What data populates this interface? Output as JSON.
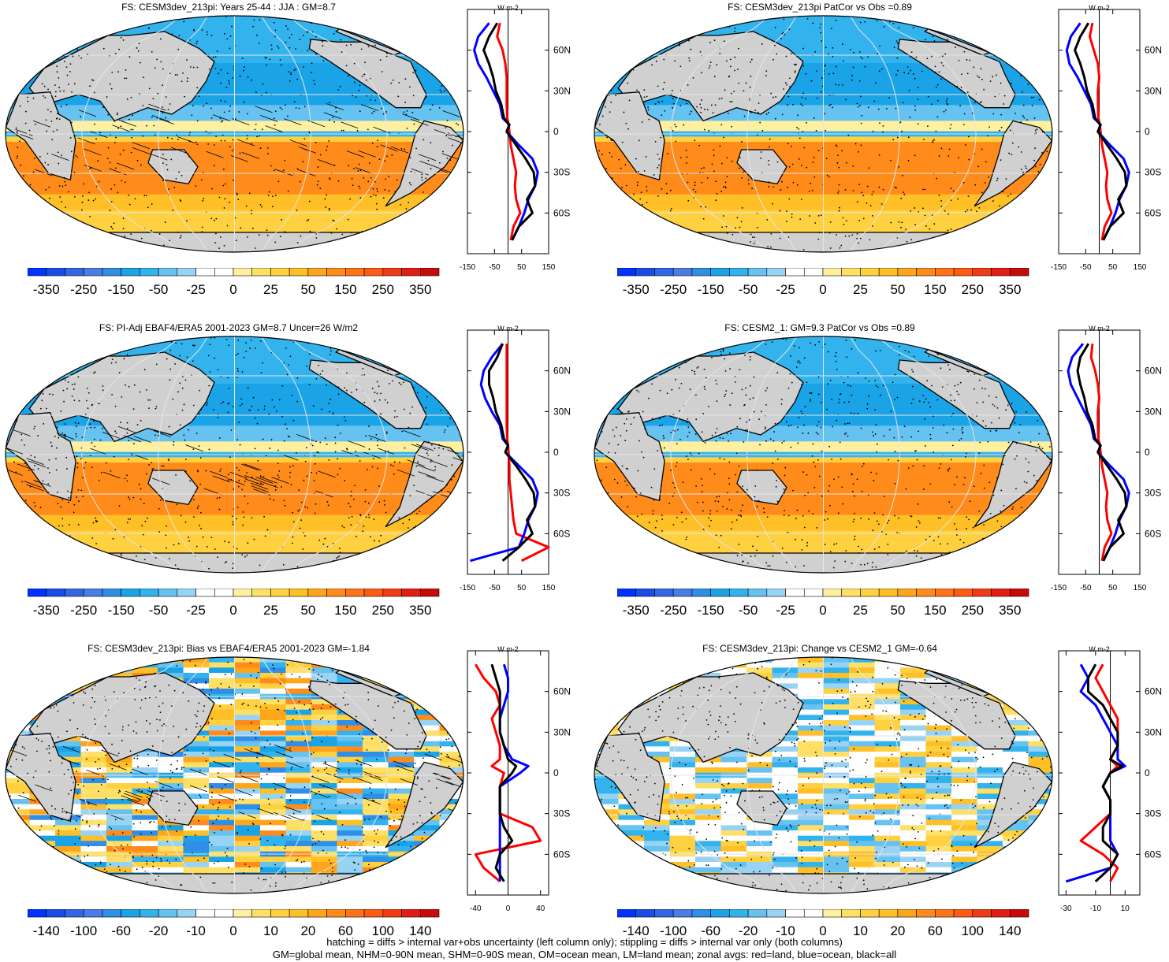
{
  "footer": {
    "line1": "hatching = diffs > internal var+obs uncertainty (left column only); stippling = diffs > internal var only (both columns)",
    "line2": "GM=global mean, NHM=0-90N mean, SHM=0-90S mean, OM=ocean mean, LM=land mean; zonal avgs: red=land, blue=ocean, black=all"
  },
  "colors": {
    "land": "#d0d0d0",
    "zonal_land": "#ff0000",
    "zonal_ocean": "#0000ff",
    "zonal_all": "#000000",
    "scale": [
      "#0033ff",
      "#1a4de6",
      "#3366e6",
      "#4a7de6",
      "#2f8fe6",
      "#1aa3e6",
      "#33b3ee",
      "#66c2f0",
      "#99d3f4",
      "#ffffff",
      "#ffffff",
      "#fff0a0",
      "#ffe066",
      "#ffd040",
      "#ffbf26",
      "#ffa51a",
      "#ff8c1a",
      "#ff7319",
      "#ff5a14",
      "#f03c14",
      "#e01e14",
      "#c80a0a"
    ]
  },
  "chart_data": [
    {
      "type": "heatmap",
      "title": "FS: CESM3dev_213pi: Years 25-44 : JJA : GM=8.7",
      "pattern": "mean",
      "hatched": true,
      "colorbar_labels": [
        "-350",
        "-250",
        "-150",
        "-50",
        "-25",
        "0",
        "25",
        "50",
        "150",
        "250",
        "350"
      ],
      "zonal": {
        "unit": "W m-2",
        "xlim": [
          -150,
          150
        ],
        "xticks": [
          "-150",
          "-50",
          "50",
          "150"
        ],
        "ylim": [
          -90,
          90
        ],
        "yticks": [
          "60N",
          "30N",
          "0",
          "30S",
          "60S"
        ],
        "ytick_values": [
          60,
          30,
          0,
          -30,
          -60
        ],
        "lat": [
          80,
          70,
          60,
          50,
          40,
          30,
          20,
          10,
          5,
          0,
          -10,
          -20,
          -30,
          -40,
          -50,
          -60,
          -70,
          -80
        ],
        "land": [
          -30,
          -40,
          -20,
          -10,
          -5,
          -5,
          -5,
          -3,
          2,
          5,
          10,
          20,
          30,
          25,
          30,
          45,
          20,
          10
        ],
        "ocean": [
          -70,
          -110,
          -125,
          -110,
          -80,
          -55,
          -30,
          -20,
          5,
          -5,
          40,
          90,
          110,
          100,
          75,
          60,
          40,
          15
        ],
        "all": [
          -40,
          -70,
          -90,
          -70,
          -55,
          -45,
          -25,
          -15,
          5,
          -5,
          30,
          65,
          95,
          100,
          70,
          90,
          40,
          15
        ]
      }
    },
    {
      "type": "heatmap",
      "title": "FS: CESM3dev_213pi PatCor vs Obs =0.89",
      "pattern": "mean",
      "hatched": false,
      "colorbar_labels": [
        "-350",
        "-250",
        "-150",
        "-50",
        "-25",
        "0",
        "25",
        "50",
        "150",
        "250",
        "350"
      ],
      "zonal": {
        "unit": "W m-2",
        "xlim": [
          -150,
          150
        ],
        "xticks": [
          "-150",
          "-50",
          "50",
          "150"
        ],
        "ylim": [
          -90,
          90
        ],
        "yticks": [
          "60N",
          "30N",
          "0",
          "30S",
          "60S"
        ],
        "ytick_values": [
          60,
          30,
          0,
          -30,
          -60
        ],
        "lat": [
          80,
          70,
          60,
          50,
          40,
          30,
          20,
          10,
          5,
          0,
          -10,
          -20,
          -30,
          -40,
          -50,
          -60,
          -70,
          -80
        ],
        "land": [
          -25,
          -35,
          -20,
          -5,
          0,
          -5,
          -5,
          -3,
          2,
          5,
          10,
          20,
          30,
          25,
          30,
          45,
          20,
          10
        ],
        "ocean": [
          -70,
          -105,
          -120,
          -110,
          -80,
          -55,
          -30,
          -20,
          5,
          -5,
          40,
          90,
          110,
          100,
          75,
          60,
          40,
          15
        ],
        "all": [
          -40,
          -70,
          -90,
          -70,
          -55,
          -45,
          -25,
          -15,
          5,
          -5,
          30,
          65,
          95,
          100,
          70,
          90,
          40,
          15
        ]
      }
    },
    {
      "type": "heatmap",
      "title": "FS: PI-Adj EBAF4/ERA5 2001-2023 GM=8.7 Uncer=26 W/m2",
      "pattern": "mean",
      "hatched": true,
      "colorbar_labels": [
        "-350",
        "-250",
        "-150",
        "-50",
        "-25",
        "0",
        "25",
        "50",
        "150",
        "250",
        "350"
      ],
      "zonal": {
        "unit": "W m-2",
        "xlim": [
          -150,
          150
        ],
        "xticks": [
          "-150",
          "-50",
          "50",
          "150"
        ],
        "ylim": [
          -90,
          90
        ],
        "yticks": [
          "60N",
          "30N",
          "0",
          "30S",
          "60S"
        ],
        "ytick_values": [
          60,
          30,
          0,
          -30,
          -60
        ],
        "lat": [
          80,
          70,
          60,
          50,
          40,
          30,
          20,
          10,
          5,
          0,
          -10,
          -20,
          -30,
          -40,
          -50,
          -60,
          -70,
          -80
        ],
        "land": [
          -5,
          -5,
          -5,
          -5,
          -5,
          -5,
          -5,
          -3,
          0,
          2,
          5,
          5,
          10,
          15,
          20,
          30,
          150,
          50
        ],
        "ocean": [
          -20,
          -60,
          -90,
          -100,
          -85,
          -60,
          -30,
          -20,
          0,
          -10,
          40,
          90,
          110,
          100,
          75,
          60,
          40,
          -140
        ],
        "all": [
          -20,
          -40,
          -70,
          -70,
          -55,
          -45,
          -25,
          -15,
          0,
          -10,
          30,
          65,
          95,
          100,
          70,
          90,
          40,
          -20
        ]
      }
    },
    {
      "type": "heatmap",
      "title": "FS: CESM2_1: GM=9.3 PatCor vs Obs =0.89",
      "pattern": "mean",
      "hatched": false,
      "colorbar_labels": [
        "-350",
        "-250",
        "-150",
        "-50",
        "-25",
        "0",
        "25",
        "50",
        "150",
        "250",
        "350"
      ],
      "zonal": {
        "unit": "W m-2",
        "xlim": [
          -150,
          150
        ],
        "xticks": [
          "-150",
          "-50",
          "50",
          "150"
        ],
        "ylim": [
          -90,
          90
        ],
        "yticks": [
          "60N",
          "30N",
          "0",
          "30S",
          "60S"
        ],
        "ytick_values": [
          60,
          30,
          0,
          -30,
          -60
        ],
        "lat": [
          80,
          70,
          60,
          50,
          40,
          30,
          20,
          10,
          5,
          0,
          -10,
          -20,
          -30,
          -40,
          -50,
          -60,
          -70,
          -80
        ],
        "land": [
          -25,
          -30,
          -15,
          -5,
          0,
          -5,
          -5,
          -3,
          2,
          5,
          10,
          20,
          30,
          25,
          30,
          45,
          20,
          10
        ],
        "ocean": [
          -60,
          -100,
          -115,
          -105,
          -80,
          -55,
          -30,
          -20,
          5,
          -5,
          40,
          90,
          110,
          100,
          75,
          60,
          40,
          15
        ],
        "all": [
          -40,
          -70,
          -80,
          -70,
          -55,
          -45,
          -25,
          -15,
          5,
          -5,
          30,
          65,
          95,
          100,
          70,
          90,
          40,
          15
        ]
      }
    },
    {
      "type": "heatmap",
      "title": "FS: CESM3dev_213pi: Bias vs EBAF4/ERA5 2001-2023 GM=-1.84",
      "pattern": "bias",
      "hatched": true,
      "colorbar_labels": [
        "-140",
        "-100",
        "-60",
        "-20",
        "-10",
        "0",
        "10",
        "20",
        "60",
        "100",
        "140"
      ],
      "zonal": {
        "unit": "W m-2",
        "xlim": [
          -50,
          50
        ],
        "xticks": [
          "-40",
          "0",
          "40"
        ],
        "ylim": [
          -90,
          90
        ],
        "yticks": [
          "60N",
          "30N",
          "0",
          "30S",
          "60S"
        ],
        "ytick_values": [
          60,
          30,
          0,
          -30,
          -60
        ],
        "lat": [
          80,
          70,
          60,
          50,
          40,
          30,
          20,
          10,
          5,
          0,
          -10,
          -20,
          -30,
          -40,
          -50,
          -60,
          -70,
          -80
        ],
        "land": [
          -40,
          -30,
          -15,
          -10,
          -20,
          -15,
          -10,
          -10,
          -20,
          -5,
          -10,
          -10,
          -10,
          30,
          40,
          -40,
          -30,
          -10
        ],
        "ocean": [
          -5,
          0,
          0,
          -5,
          -10,
          -10,
          -5,
          5,
          25,
          15,
          -10,
          -10,
          -10,
          -10,
          -10,
          -10,
          -10,
          -10
        ],
        "all": [
          -20,
          -15,
          -10,
          -10,
          -10,
          -10,
          -5,
          0,
          10,
          5,
          -10,
          -10,
          -10,
          -5,
          5,
          -10,
          -15,
          -5
        ]
      }
    },
    {
      "type": "heatmap",
      "title": "FS: CESM3dev_213pi: Change vs CESM2_1 GM=-0.64",
      "pattern": "change",
      "hatched": false,
      "colorbar_labels": [
        "-140",
        "-100",
        "-60",
        "-20",
        "-10",
        "0",
        "10",
        "20",
        "60",
        "100",
        "140"
      ],
      "zonal": {
        "unit": "W m-2",
        "xlim": [
          -35,
          20
        ],
        "xticks": [
          "-30",
          "-10",
          "10"
        ],
        "ylim": [
          -90,
          90
        ],
        "yticks": [
          "60N",
          "30N",
          "0",
          "30S",
          "60S"
        ],
        "ytick_values": [
          60,
          30,
          0,
          -30,
          -60
        ],
        "lat": [
          80,
          70,
          60,
          50,
          40,
          30,
          20,
          10,
          5,
          0,
          -10,
          -20,
          -30,
          -40,
          -50,
          -60,
          -70,
          -80
        ],
        "land": [
          -5,
          -10,
          -5,
          0,
          5,
          5,
          5,
          0,
          5,
          0,
          -5,
          0,
          0,
          -10,
          -20,
          -5,
          5,
          0
        ],
        "ocean": [
          -20,
          -15,
          -20,
          -10,
          -5,
          0,
          5,
          5,
          10,
          0,
          -5,
          0,
          0,
          0,
          0,
          5,
          0,
          -30
        ],
        "all": [
          -10,
          -15,
          -15,
          -5,
          0,
          5,
          5,
          0,
          8,
          0,
          -5,
          0,
          0,
          -5,
          -5,
          5,
          0,
          -10
        ]
      }
    }
  ]
}
